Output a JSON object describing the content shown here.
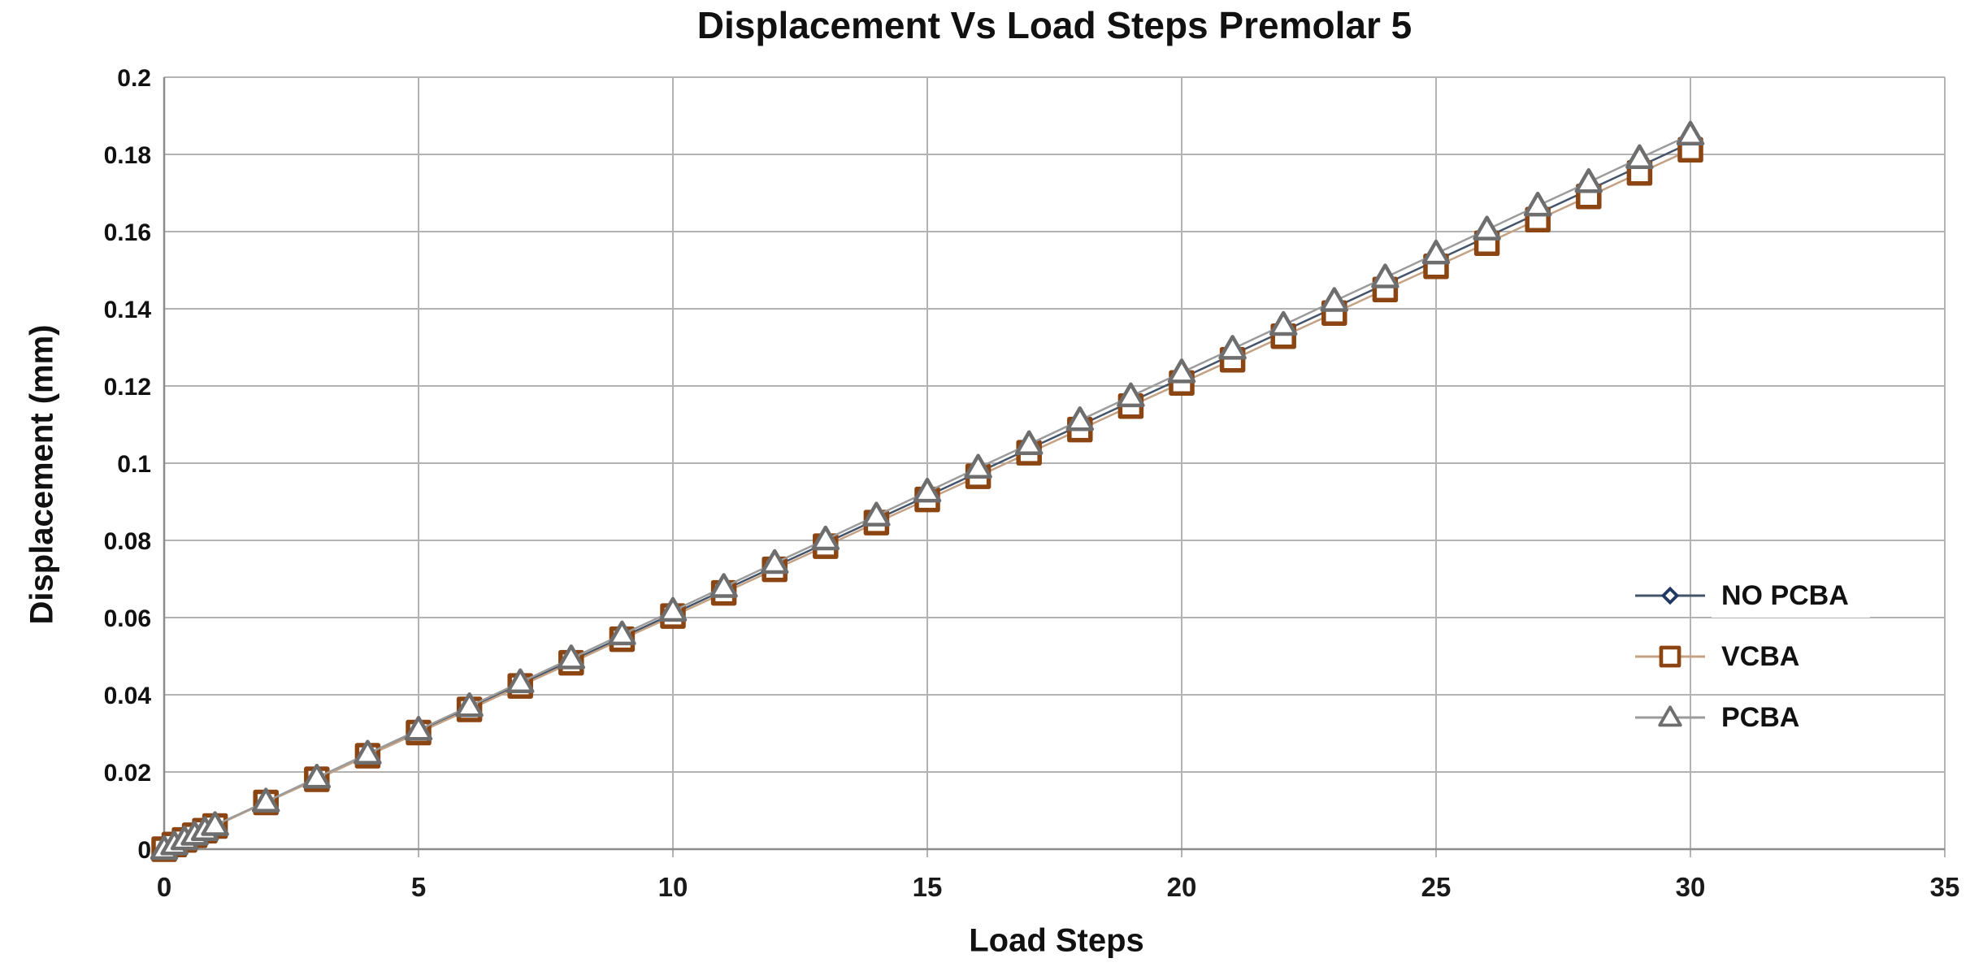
{
  "title": "Displacement Vs Load Steps Premolar 5",
  "colors": {
    "background": "#FFFFFF",
    "grid": "#B3B3B3",
    "axis": "#8C8C8C",
    "text": "#111111",
    "no_pcba_marker": "#1F3864",
    "no_pcba_line": "#44546A",
    "vcba_marker": "#8B4512",
    "vcba_line": "#C4A182",
    "pcba_marker": "#6E6E6E",
    "pcba_line": "#9B9B9B"
  },
  "legend": {
    "position": "right-middle",
    "items": [
      "NO PCBA",
      "VCBA",
      "PCBA"
    ]
  },
  "chart_data": {
    "type": "line",
    "title": "Displacement Vs Load Steps Premolar 5",
    "xlabel": "Load Steps",
    "ylabel": "Displacement (mm)",
    "xlim": [
      0,
      35
    ],
    "ylim": [
      0,
      0.2
    ],
    "grid": true,
    "legend_position": "right-middle",
    "x_ticks": [
      0,
      5,
      10,
      15,
      20,
      25,
      30,
      35
    ],
    "x_tick_labels": [
      "0",
      "5",
      "10",
      "15",
      "20",
      "25",
      "30",
      "35"
    ],
    "y_ticks": [
      0,
      0.02,
      0.04,
      0.06,
      0.08,
      0.1,
      0.12,
      0.14,
      0.16,
      0.18,
      0.2
    ],
    "y_tick_labels": [
      "0",
      "0.02",
      "0.04",
      "0.06",
      "0.08",
      "0.1",
      "0.12",
      "0.14",
      "0.16",
      "0.18",
      "0.2"
    ],
    "x": [
      0,
      0.2,
      0.4,
      0.6,
      0.8,
      1,
      2,
      3,
      4,
      5,
      6,
      7,
      8,
      9,
      10,
      11,
      12,
      13,
      14,
      15,
      16,
      17,
      18,
      19,
      20,
      21,
      22,
      23,
      24,
      25,
      26,
      27,
      28,
      29,
      30
    ],
    "series": [
      {
        "name": "NO PCBA",
        "marker": "diamond",
        "marker_color": "#1F3864",
        "line_color": "#44546A",
        "values": [
          0,
          0.0012,
          0.0024,
          0.0037,
          0.0049,
          0.0061,
          0.0122,
          0.0183,
          0.0244,
          0.0305,
          0.0366,
          0.0427,
          0.0488,
          0.0549,
          0.061,
          0.0671,
          0.0732,
          0.0793,
          0.0854,
          0.0915,
          0.0976,
          0.1037,
          0.1098,
          0.1159,
          0.122,
          0.1281,
          0.1342,
          0.1403,
          0.1464,
          0.1525,
          0.1586,
          0.1647,
          0.1708,
          0.1769,
          0.183
        ]
      },
      {
        "name": "VCBA",
        "marker": "square",
        "marker_color": "#8B4512",
        "line_color": "#C4A182",
        "values": [
          0,
          0.0012,
          0.0024,
          0.0036,
          0.0048,
          0.006,
          0.0121,
          0.0181,
          0.0242,
          0.0302,
          0.0362,
          0.0423,
          0.0483,
          0.0544,
          0.0604,
          0.0664,
          0.0725,
          0.0785,
          0.0846,
          0.0906,
          0.0966,
          0.1027,
          0.1087,
          0.1148,
          0.1208,
          0.1268,
          0.1329,
          0.1389,
          0.145,
          0.151,
          0.157,
          0.1631,
          0.1691,
          0.1752,
          0.1812
        ]
      },
      {
        "name": "PCBA",
        "marker": "triangle",
        "marker_color": "#6E6E6E",
        "line_color": "#9B9B9B",
        "values": [
          0,
          0.0012,
          0.0025,
          0.0037,
          0.0049,
          0.0062,
          0.0123,
          0.0185,
          0.0247,
          0.0309,
          0.037,
          0.0432,
          0.0494,
          0.0556,
          0.0617,
          0.0679,
          0.0741,
          0.0802,
          0.0864,
          0.0926,
          0.0988,
          0.1049,
          0.1111,
          0.1173,
          0.1235,
          0.1296,
          0.1358,
          0.142,
          0.1481,
          0.1543,
          0.1605,
          0.1667,
          0.1728,
          0.179,
          0.1851
        ]
      }
    ]
  }
}
